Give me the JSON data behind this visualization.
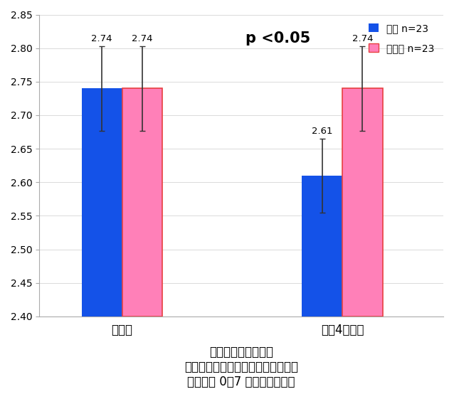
{
  "groups": [
    "塗布前",
    "塗布4週間後"
  ],
  "blue_values": [
    2.74,
    2.61
  ],
  "pink_values": [
    2.74,
    2.74
  ],
  "blue_errors": [
    0.063,
    0.055
  ],
  "pink_errors": [
    0.063,
    0.063
  ],
  "blue_color": "#1452e8",
  "pink_color": "#ff80b8",
  "pink_edge_color": "#e84040",
  "blue_edge_color": "none",
  "ylim": [
    2.4,
    2.85
  ],
  "yticks": [
    2.4,
    2.45,
    2.5,
    2.55,
    2.6,
    2.65,
    2.7,
    2.75,
    2.8,
    2.85
  ],
  "bar_width": 0.22,
  "group_positions": [
    1.0,
    2.2
  ],
  "legend_blue": "塗布 n=23",
  "legend_pink": "未塗布 n=23",
  "pvalue_text": "p <0.05",
  "title_line1": "シワグレードの推移",
  "title_line2": "シワグレードとは、日本香粧品学会",
  "title_line3": "が定めた 0～7 段階のシワ指標",
  "bg_color": "#ffffff",
  "error_capsize": 3,
  "error_linewidth": 1.2,
  "xlim": [
    0.55,
    2.75
  ]
}
